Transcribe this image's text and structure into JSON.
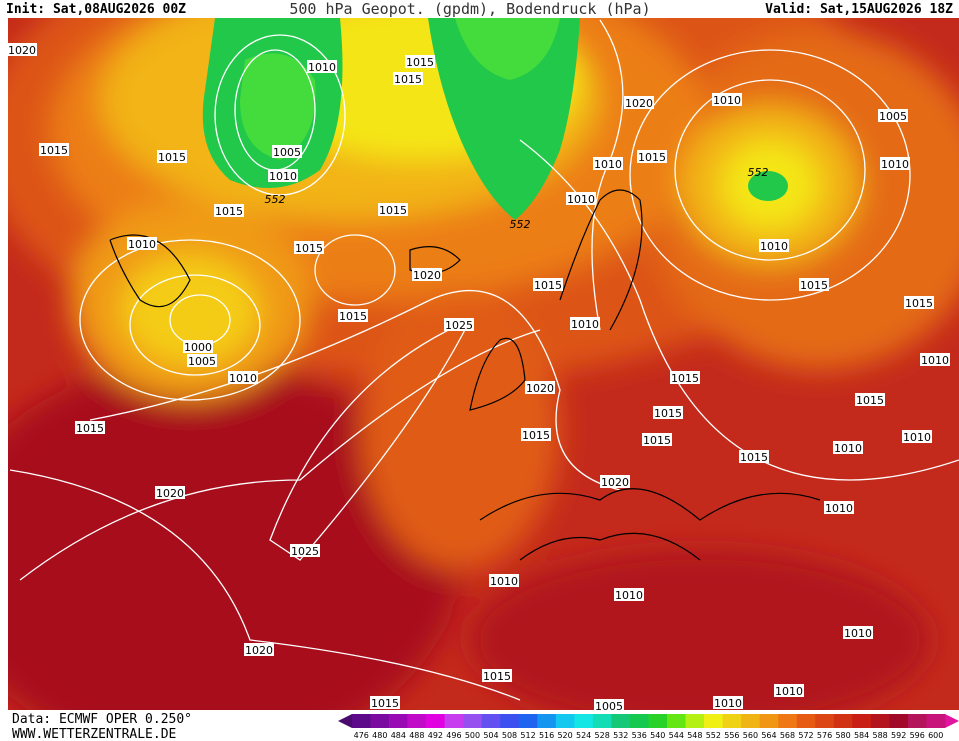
{
  "header": {
    "init": "Init: Sat,08AUG2026 00Z",
    "title": "500 hPa Geopot. (gpdm), Bodendruck (hPa)",
    "valid": "Valid: Sat,15AUG2026 18Z"
  },
  "footer": {
    "data": "Data: ECMWF OPER 0.250°",
    "site": "WWW.WETTERZENTRALE.DE"
  },
  "colorbar": {
    "levels": [
      476,
      480,
      484,
      488,
      492,
      496,
      500,
      504,
      508,
      512,
      516,
      520,
      524,
      528,
      532,
      536,
      540,
      544,
      548,
      552,
      556,
      560,
      564,
      568,
      572,
      576,
      580,
      584,
      588,
      592,
      596,
      600
    ],
    "colors": [
      "#5c0a8a",
      "#7a0aa0",
      "#9a0ab4",
      "#c00ac8",
      "#e000e0",
      "#c83cf0",
      "#9650f0",
      "#6450f0",
      "#3c50f0",
      "#1e64f0",
      "#1496f0",
      "#14c8f0",
      "#14e6e6",
      "#14dcb4",
      "#14c878",
      "#14c850",
      "#28d228",
      "#64e614",
      "#b4f014",
      "#f0f014",
      "#f0d214",
      "#f0b414",
      "#f09614",
      "#f07814",
      "#e65a14",
      "#dc4614",
      "#d23214",
      "#c81e14",
      "#b4141e",
      "#a00a28",
      "#b4145a",
      "#c8147a"
    ]
  },
  "isobar_labels": [
    "1020",
    "1015",
    "1015",
    "1015",
    "1010",
    "1010",
    "1005",
    "1010",
    "552",
    "1015",
    "1015",
    "1015",
    "1015",
    "1020",
    "1015",
    "1025",
    "1000",
    "1005",
    "1010",
    "1015",
    "1020",
    "1025",
    "1020",
    "1015",
    "1020",
    "1015",
    "1020",
    "1010",
    "1010",
    "1015",
    "1005",
    "1010",
    "1010",
    "1010",
    "1010",
    "1015",
    "1010",
    "1015",
    "1010",
    "1010",
    "1015",
    "1015",
    "1010",
    "552",
    "1010",
    "1005",
    "1010",
    "1020",
    "1015",
    "1010",
    "1010",
    "552",
    "1015",
    "1010",
    "1015",
    "1015",
    "1015"
  ]
}
